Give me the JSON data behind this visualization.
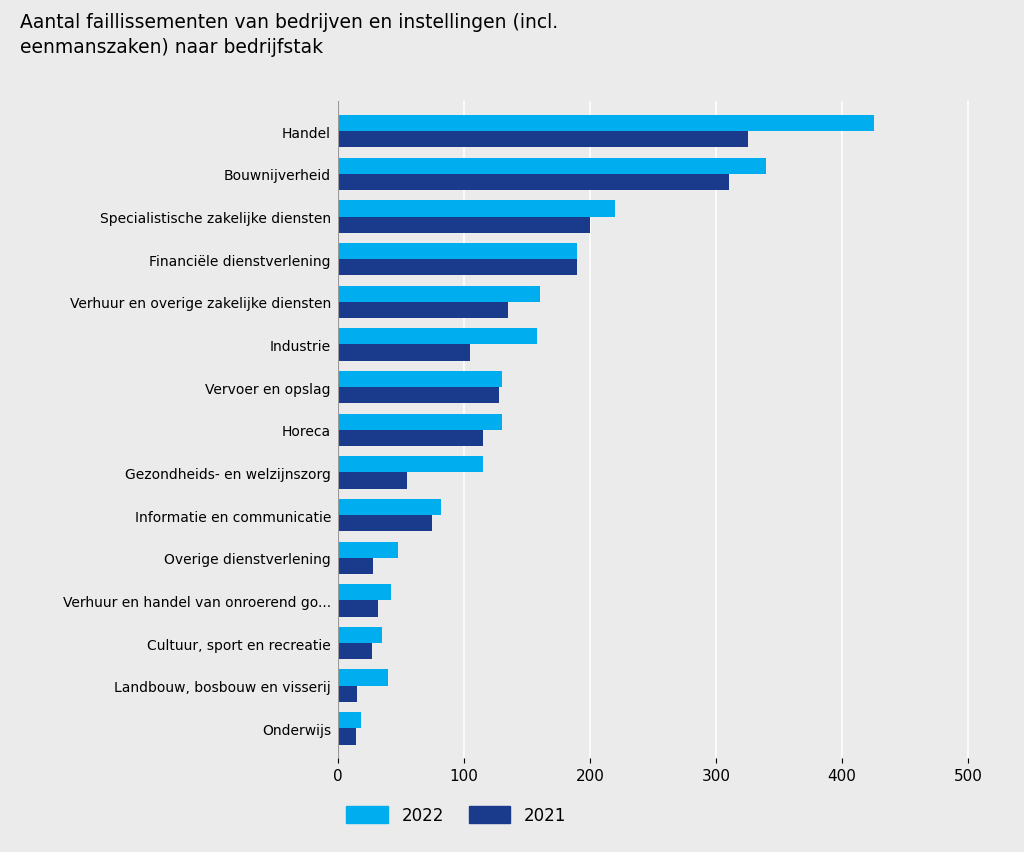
{
  "title_line1": "Aantal faillissementen van bedrijven en instellingen (incl.",
  "title_line2": "eenmanszaken) naar bedrijfstak",
  "categories": [
    "Handel",
    "Bouwnijverheid",
    "Specialistische zakelijke diensten",
    "Financiële dienstverlening",
    "Verhuur en overige zakelijke diensten",
    "Industrie",
    "Vervoer en opslag",
    "Horeca",
    "Gezondheids- en welzijnszorg",
    "Informatie en communicatie",
    "Overige dienstverlening",
    "Verhuur en handel van onroerend go...",
    "Cultuur, sport en recreatie",
    "Landbouw, bosbouw en visserij",
    "Onderwijs"
  ],
  "values_2022": [
    425,
    340,
    220,
    190,
    160,
    158,
    130,
    130,
    115,
    82,
    48,
    42,
    35,
    40,
    18
  ],
  "values_2021": [
    325,
    310,
    200,
    190,
    135,
    105,
    128,
    115,
    55,
    75,
    28,
    32,
    27,
    15,
    14
  ],
  "color_2022": "#00AEEF",
  "color_2021": "#1A3A8C",
  "background_color": "#EBEBEB",
  "plot_bg_color": "#EBEBEB",
  "xlim": [
    0,
    520
  ],
  "xticks": [
    0,
    100,
    200,
    300,
    400,
    500
  ],
  "bar_height": 0.38,
  "legend_2022": "2022",
  "legend_2021": "2021"
}
